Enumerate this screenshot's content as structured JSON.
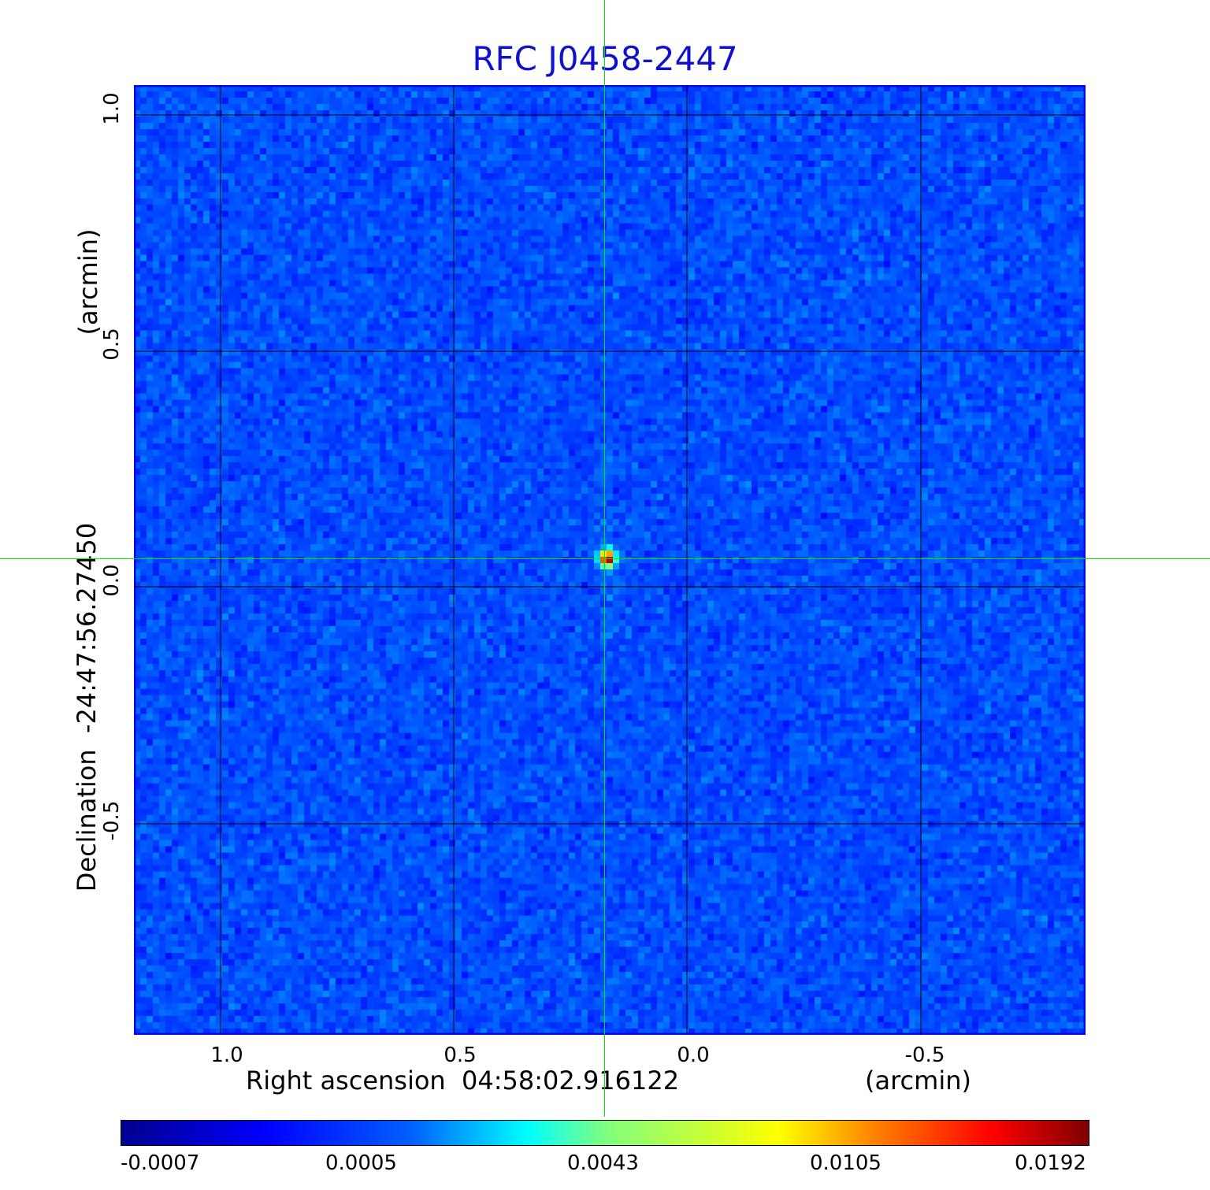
{
  "title": "RFC J0458-2447",
  "axes": {
    "x_label": "Right ascension  04:58:02.916122",
    "x_unit": "(arcmin)",
    "y_label": "Declination  -24:47:56.27450",
    "y_unit": "(arcmin)",
    "x_ticks": [
      "1.0",
      "0.5",
      "0.0",
      "-0.5"
    ],
    "y_ticks": [
      "1.0",
      "0.5",
      "0.0",
      "-0.5"
    ]
  },
  "colorbar": {
    "ticks": [
      "-0.0007",
      "0.0005",
      "0.0043",
      "0.0105",
      "0.0192"
    ],
    "colormap": "jet"
  },
  "colors": {
    "title": "#1010d0",
    "crosshair": "#00e600",
    "grid": "#000000",
    "background_field": "#1a6af0"
  },
  "source": {
    "peak_flux": "0.0192"
  }
}
